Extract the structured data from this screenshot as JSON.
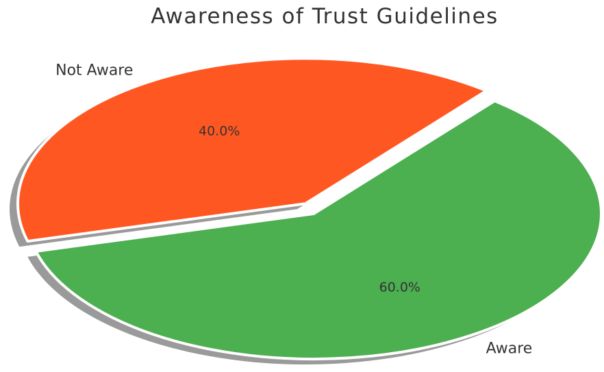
{
  "chart_data": {
    "type": "pie",
    "title": "Awareness of Trust Guidelines",
    "categories": [
      "Aware",
      "Not Aware"
    ],
    "values": [
      60,
      40
    ],
    "percent_labels": [
      "60.0%",
      "40.0%"
    ],
    "colors": [
      "#4caf50",
      "#ff5722"
    ],
    "shadow": true,
    "exploded": [
      "Not Aware"
    ],
    "legend": "none"
  }
}
